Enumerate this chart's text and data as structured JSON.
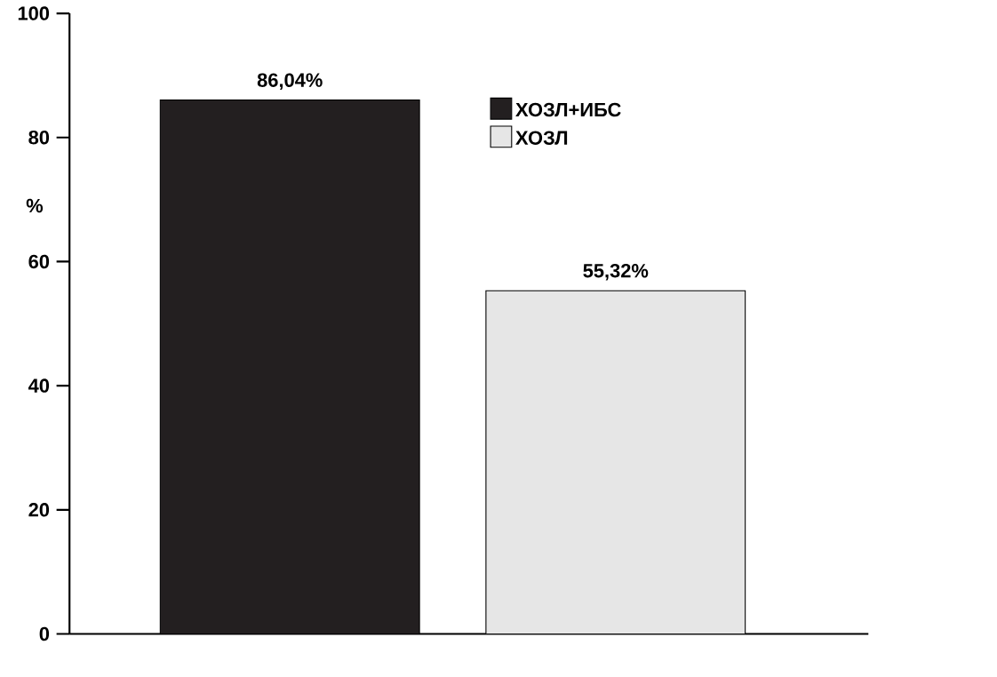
{
  "chart_data": {
    "type": "bar",
    "ylabel": "%",
    "categories": [
      null,
      null
    ],
    "series": [
      {
        "name": "ХОЗЛ+ИБС",
        "color": "#231f20",
        "values": [
          86.04,
          null
        ],
        "value_labels": [
          "86,04%",
          null
        ]
      },
      {
        "name": "ХОЗЛ",
        "color": "#e6e6e6",
        "values": [
          null,
          55.32
        ],
        "value_labels": [
          null,
          "55,32%"
        ]
      }
    ],
    "ylim": [
      0,
      100
    ],
    "yticks": [
      0,
      20,
      40,
      60,
      80,
      100
    ],
    "legend": "top right"
  }
}
